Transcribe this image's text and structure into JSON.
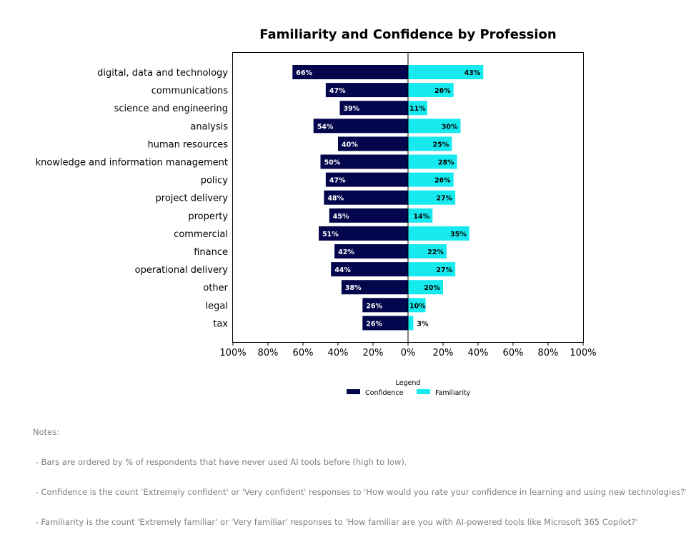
{
  "chart_data": {
    "type": "bar",
    "orientation": "horizontal-diverging",
    "title": "Familiarity and Confidence by Profession",
    "categories": [
      "digital, data and technology",
      "communications",
      "science and engineering",
      "analysis",
      "human resources",
      "knowledge and information management",
      "policy",
      "project delivery",
      "property",
      "commercial",
      "finance",
      "operational delivery",
      "other",
      "legal",
      "tax"
    ],
    "series": [
      {
        "name": "Confidence",
        "color": "#03064c",
        "direction": "left",
        "values": [
          66,
          47,
          39,
          54,
          40,
          50,
          47,
          48,
          45,
          51,
          42,
          44,
          38,
          26,
          26
        ],
        "labels": [
          "66%",
          "47%",
          "39%",
          "54%",
          "40%",
          "50%",
          "47%",
          "48%",
          "45%",
          "51%",
          "42%",
          "44%",
          "38%",
          "26%",
          "26%"
        ]
      },
      {
        "name": "Familiarity",
        "color": "#17eaef",
        "direction": "right",
        "values": [
          43,
          26,
          11,
          30,
          25,
          28,
          26,
          27,
          14,
          35,
          22,
          27,
          20,
          10,
          3
        ],
        "labels": [
          "43%",
          "26%",
          "11%",
          "30%",
          "25%",
          "28%",
          "26%",
          "27%",
          "14%",
          "35%",
          "22%",
          "27%",
          "20%",
          "10%",
          "3%"
        ]
      }
    ],
    "xlim": [
      -100,
      100
    ],
    "xticks": [
      "100%",
      "80%",
      "60%",
      "40%",
      "20%",
      "0%",
      "20%",
      "40%",
      "60%",
      "80%",
      "100%"
    ],
    "grid": false,
    "legend": {
      "title": "Legend",
      "placement": "bottom-center",
      "entries": [
        "Confidence",
        "Familiarity"
      ]
    }
  },
  "notes": {
    "heading": "Notes:",
    "lines": [
      " - Bars are ordered by % of respondents that have never used AI tools before (high to low).",
      " - Confidence is the count 'Extremely confident' or 'Very confident' responses to 'How would you rate your confidence in learning and using new technologies?'",
      " - Familiarity is the count 'Extremely familiar' or 'Very familiar' responses to 'How familiar are you with AI-powered tools like Microsoft 365 Copilot?'"
    ]
  }
}
